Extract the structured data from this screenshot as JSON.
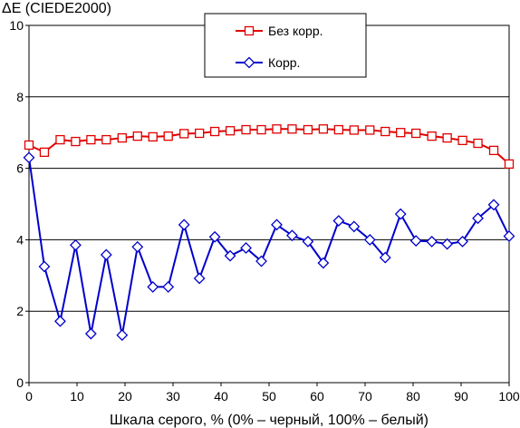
{
  "chart_data": {
    "type": "line",
    "title": "ΔE (CIEDE2000)",
    "xlabel": "Шкала серого, % (0% – черный, 100% – белый)",
    "ylabel": "",
    "xlim": [
      0,
      100
    ],
    "ylim": [
      0,
      10
    ],
    "x_ticks": [
      0,
      10,
      20,
      30,
      40,
      50,
      60,
      70,
      80,
      90,
      100
    ],
    "y_ticks": [
      0,
      2,
      4,
      6,
      8,
      10
    ],
    "grid": "horizontal",
    "legend_position": "top-center",
    "x": [
      0,
      3.2,
      6.5,
      9.7,
      12.9,
      16.1,
      19.4,
      22.6,
      25.8,
      29,
      32.3,
      35.5,
      38.7,
      41.9,
      45.2,
      48.4,
      51.6,
      54.8,
      58.1,
      61.3,
      64.5,
      67.7,
      71,
      74.2,
      77.4,
      80.6,
      83.9,
      87.1,
      90.3,
      93.5,
      96.8,
      100
    ],
    "series": [
      {
        "name": "Без корр.",
        "color": "#e00000",
        "marker": "square",
        "values": [
          6.65,
          6.45,
          6.8,
          6.75,
          6.8,
          6.8,
          6.85,
          6.9,
          6.88,
          6.9,
          6.97,
          6.98,
          7.03,
          7.05,
          7.08,
          7.08,
          7.1,
          7.1,
          7.08,
          7.1,
          7.08,
          7.07,
          7.07,
          7.03,
          7.0,
          6.98,
          6.9,
          6.85,
          6.78,
          6.7,
          6.5,
          6.12
        ]
      },
      {
        "name": "Корр.",
        "color": "#0000cc",
        "marker": "diamond",
        "values": [
          6.3,
          3.25,
          1.72,
          3.85,
          1.37,
          3.58,
          1.33,
          3.8,
          2.68,
          2.68,
          4.42,
          2.92,
          4.08,
          3.55,
          3.77,
          3.4,
          4.42,
          4.12,
          3.95,
          3.35,
          4.53,
          4.37,
          4.0,
          3.5,
          4.72,
          3.97,
          3.95,
          3.88,
          3.95,
          4.6,
          4.98,
          4.1
        ]
      }
    ]
  }
}
